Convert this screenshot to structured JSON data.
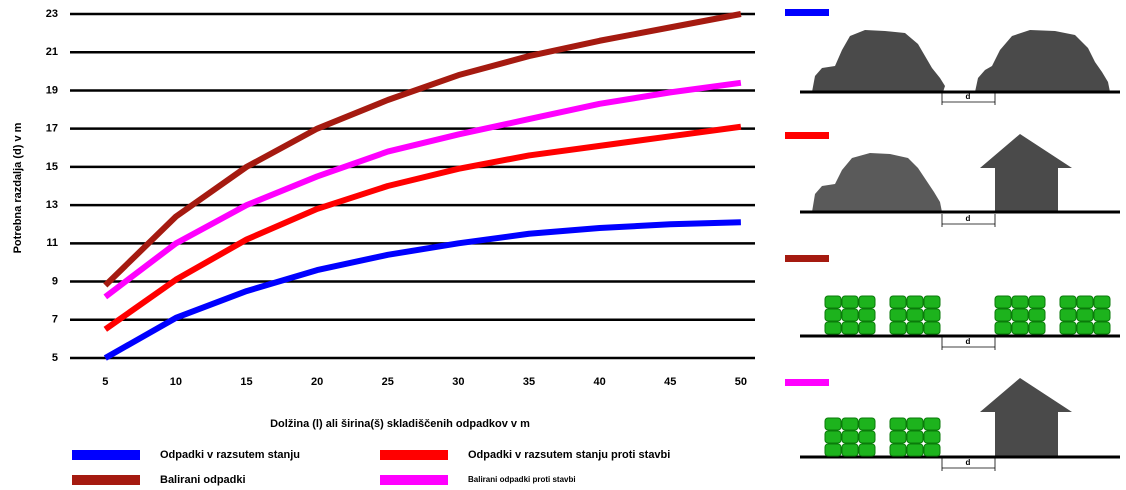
{
  "chart_data": {
    "type": "line",
    "y_label": "Potrebna razdalja (d) v m",
    "x_label": "Dolžina (l) ali širina(š) skladiščenih odpadkov v m",
    "x": [
      5,
      10,
      15,
      20,
      25,
      30,
      35,
      40,
      45,
      50
    ],
    "xlim": [
      2.5,
      51
    ],
    "xticks": [
      5,
      10,
      15,
      20,
      25,
      30,
      35,
      40,
      45,
      50
    ],
    "ylim": [
      5,
      23
    ],
    "yticks": [
      5,
      7,
      9,
      11,
      13,
      15,
      17,
      19,
      21,
      23
    ],
    "grid": true,
    "series": [
      {
        "name": "Odpadki v razsutem stanju",
        "color": "#0000ff",
        "values": [
          5.0,
          7.1,
          8.5,
          9.6,
          10.4,
          11.0,
          11.5,
          11.8,
          12.0,
          12.1
        ]
      },
      {
        "name": "Odpadki v razsutem stanju proti stavbi",
        "color": "#ff0000",
        "values": [
          6.5,
          9.1,
          11.2,
          12.8,
          14.0,
          14.9,
          15.6,
          16.1,
          16.6,
          17.1
        ]
      },
      {
        "name": "Balirani odpadki",
        "color": "#a51a10",
        "values": [
          8.8,
          12.4,
          15.0,
          17.0,
          18.5,
          19.8,
          20.8,
          21.6,
          22.3,
          23.0
        ]
      },
      {
        "name": "Balirani odpadki proti stavbi",
        "color": "#ff00ff",
        "values": [
          8.2,
          11.0,
          13.0,
          14.5,
          15.8,
          16.7,
          17.5,
          18.3,
          18.9,
          19.4
        ]
      }
    ]
  },
  "illustrations": [
    {
      "label": "d"
    },
    {
      "label": "d"
    },
    {
      "label": "d"
    },
    {
      "label": "d"
    }
  ]
}
